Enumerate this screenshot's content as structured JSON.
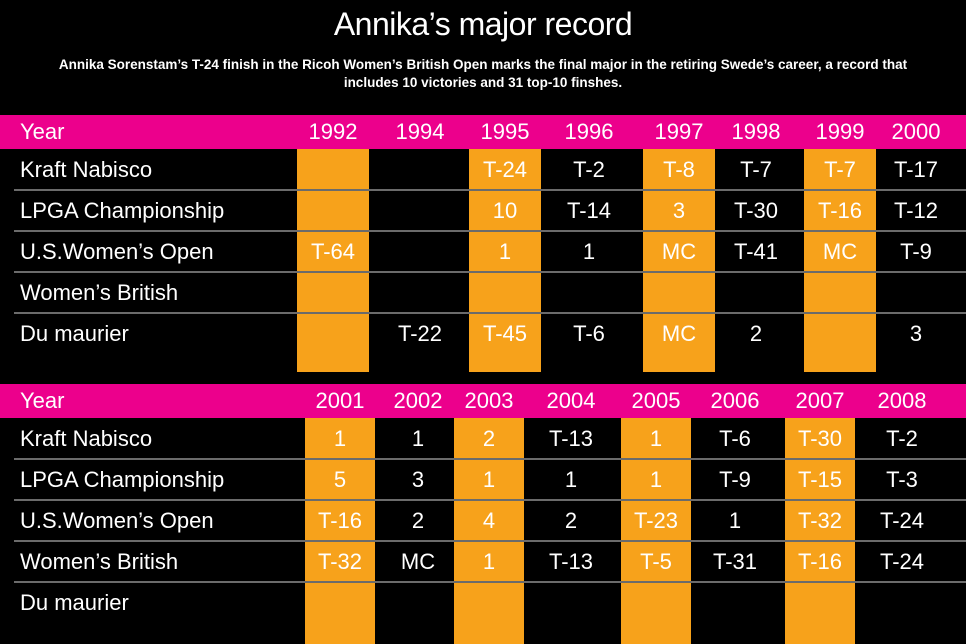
{
  "title": "Annika’s major record",
  "subtitle": "Annika Sorenstam’s T-24 finish in the Ricoh Women’s British Open marks the final major in the retiring Swede’s career, a record that includes 10 victories and 31 top-10 finshes.",
  "colors": {
    "header": "#ec008c",
    "highlight": "#f7a21b",
    "background": "#000000",
    "text": "#ffffff"
  },
  "chart_data": {
    "type": "table",
    "title": "Annika’s major record",
    "tables": [
      {
        "header_label": "Year",
        "years": [
          "1992",
          "1994",
          "1995",
          "1996",
          "1997",
          "1998",
          "1999",
          "2000"
        ],
        "highlighted_years": [
          "1992",
          "1995",
          "1997",
          "1999"
        ],
        "rows": [
          {
            "event": "Kraft Nabisco",
            "results": [
              "",
              "",
              "T-24",
              "T-2",
              "T-8",
              "T-7",
              "T-7",
              "T-17"
            ]
          },
          {
            "event": "LPGA Championship",
            "results": [
              "",
              "",
              "10",
              "T-14",
              "3",
              "T-30",
              "T-16",
              "T-12"
            ]
          },
          {
            "event": "U.S.Women’s Open",
            "results": [
              "T-64",
              "",
              "1",
              "1",
              "MC",
              "T-41",
              "MC",
              "T-9"
            ]
          },
          {
            "event": "Women’s British",
            "results": [
              "",
              "",
              "",
              "",
              "",
              "",
              "",
              ""
            ]
          },
          {
            "event": "Du maurier",
            "results": [
              "",
              "T-22",
              "T-45",
              "T-6",
              "MC",
              "2",
              "",
              "3"
            ]
          }
        ]
      },
      {
        "header_label": "Year",
        "years": [
          "2001",
          "2002",
          "2003",
          "2004",
          "2005",
          "2006",
          "2007",
          "2008"
        ],
        "highlighted_years": [
          "2001",
          "2003",
          "2005",
          "2007"
        ],
        "rows": [
          {
            "event": "Kraft Nabisco",
            "results": [
              "1",
              "1",
              "2",
              "T-13",
              "1",
              "T-6",
              "T-30",
              "T-2"
            ]
          },
          {
            "event": "LPGA Championship",
            "results": [
              "5",
              "3",
              "1",
              "1",
              "1",
              "T-9",
              "T-15",
              "T-3"
            ]
          },
          {
            "event": "U.S.Women’s Open",
            "results": [
              "T-16",
              "2",
              "4",
              "2",
              "T-23",
              "1",
              "T-32",
              "T-24"
            ]
          },
          {
            "event": "Women’s British",
            "results": [
              "T-32",
              "MC",
              "1",
              "T-13",
              "T-5",
              "T-31",
              "T-16",
              "T-24"
            ]
          },
          {
            "event": "Du maurier",
            "results": [
              "",
              "",
              "",
              "",
              "",
              "",
              "",
              ""
            ]
          }
        ]
      }
    ]
  }
}
